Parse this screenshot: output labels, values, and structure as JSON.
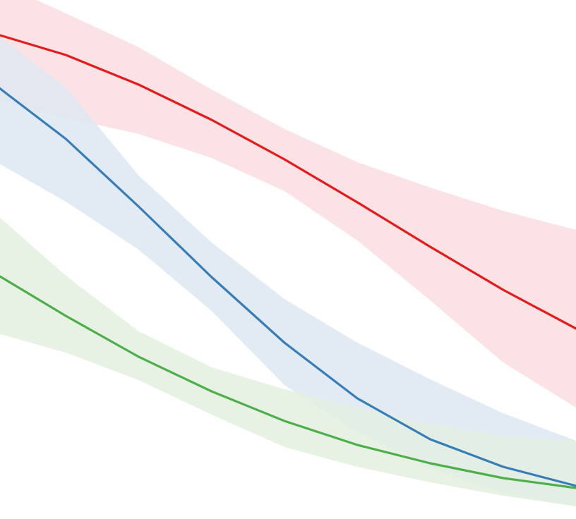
{
  "chart_data": {
    "type": "line",
    "title": "",
    "xlabel": "",
    "ylabel": "",
    "grid": false,
    "legend": "none",
    "x": [
      0,
      1,
      2,
      3,
      4,
      5,
      6,
      7,
      8
    ],
    "xlim": [
      0,
      8
    ],
    "ylim": [
      0,
      736
    ],
    "series": [
      {
        "color": "#e41a1c",
        "band_color": "#fadde1",
        "values": [
          689,
          658,
          616,
          566,
          510,
          449,
          386,
          325,
          270
        ],
        "lower": [
          596,
          569,
          546,
          512,
          465,
          395,
          310,
          222,
          158
        ],
        "upper": [
          764,
          717,
          669,
          609,
          553,
          506,
          470,
          437,
          410
        ]
      },
      {
        "color": "#377eb8",
        "band_color": "#dde7f2",
        "values": [
          618,
          539,
          443,
          343,
          250,
          171,
          113,
          74,
          47
        ],
        "lower": [
          509,
          450,
          382,
          295,
          190,
          124,
          72,
          37,
          18
        ],
        "upper": [
          691,
          612,
          487,
          392,
          312,
          250,
          198,
          150,
          111
        ]
      },
      {
        "color": "#4daf4a",
        "band_color": "#e3f0e1",
        "values": [
          350,
          288,
          230,
          181,
          139,
          105,
          79,
          58,
          44
        ],
        "lower": [
          265,
          236,
          197,
          148,
          102,
          74,
          52,
          33,
          18
        ],
        "upper": [
          436,
          345,
          266,
          215,
          184,
          158,
          135,
          117,
          111
        ]
      }
    ]
  }
}
